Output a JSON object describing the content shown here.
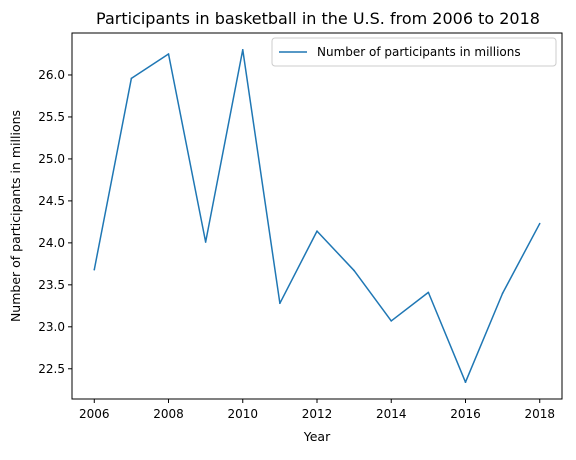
{
  "chart_data": {
    "type": "line",
    "title": "Participants in basketball in the U.S. from 2006 to 2018",
    "xlabel": "Year",
    "ylabel": "Number of participants in millions",
    "x": [
      2006,
      2007,
      2008,
      2009,
      2010,
      2011,
      2012,
      2013,
      2014,
      2015,
      2016,
      2017,
      2018
    ],
    "series": [
      {
        "name": "Number of participants in millions",
        "values": [
          23.68,
          25.96,
          26.25,
          24.01,
          26.3,
          23.28,
          24.14,
          23.67,
          23.07,
          23.41,
          22.34,
          23.4,
          24.23
        ],
        "color": "#1f77b4"
      }
    ],
    "xlim": [
      2005.4,
      2018.6
    ],
    "ylim": [
      22.14,
      26.5
    ],
    "xticks": [
      2006,
      2008,
      2010,
      2012,
      2014,
      2016,
      2018
    ],
    "yticks": [
      22.5,
      23.0,
      23.5,
      24.0,
      24.5,
      25.0,
      25.5,
      26.0
    ],
    "ytick_labels": [
      "22.5",
      "23.0",
      "23.5",
      "24.0",
      "24.5",
      "25.0",
      "25.5",
      "26.0"
    ],
    "grid": false,
    "legend": "upper right"
  }
}
